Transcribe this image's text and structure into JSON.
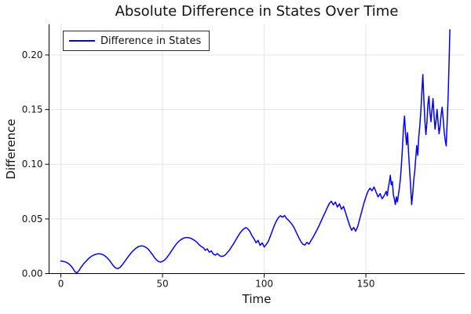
{
  "colors": {
    "series": "#0000ff",
    "grid": "#e4e4e4",
    "axis": "#000000",
    "legend_border": "#2b2b2b",
    "background": "#ffffff",
    "text": "#111111"
  },
  "legend": {
    "label": "Difference in States"
  },
  "chart_data": {
    "type": "line",
    "title": "Absolute Difference in States Over Time",
    "xlabel": "Time",
    "ylabel": "Difference",
    "xlim": [
      -5.8,
      198.6
    ],
    "ylim": [
      0,
      0.228
    ],
    "x_ticks": [
      0,
      50,
      100,
      150
    ],
    "x_tick_labels": [
      "0",
      "50",
      "100",
      "150"
    ],
    "y_ticks": [
      0,
      0.05,
      0.1,
      0.15,
      0.2
    ],
    "y_tick_labels": [
      "0.00",
      "0.05",
      "0.10",
      "0.15",
      "0.20"
    ],
    "grid": true,
    "legend_position": "top-left",
    "series": [
      {
        "name": "Difference in States",
        "color": "#0000ff",
        "points": [
          [
            0,
            0.0115
          ],
          [
            1,
            0.0112
          ],
          [
            2,
            0.0108
          ],
          [
            3,
            0.01
          ],
          [
            4,
            0.0088
          ],
          [
            5,
            0.007
          ],
          [
            6,
            0.0045
          ],
          [
            7,
            0.0015
          ],
          [
            8,
            0.0008
          ],
          [
            9,
            0.003
          ],
          [
            10,
            0.006
          ],
          [
            11,
            0.0085
          ],
          [
            12,
            0.0105
          ],
          [
            13,
            0.0125
          ],
          [
            14,
            0.0143
          ],
          [
            15,
            0.0158
          ],
          [
            16,
            0.0168
          ],
          [
            17,
            0.0175
          ],
          [
            18,
            0.018
          ],
          [
            19,
            0.0181
          ],
          [
            20,
            0.0178
          ],
          [
            21,
            0.017
          ],
          [
            22,
            0.0157
          ],
          [
            23,
            0.014
          ],
          [
            24,
            0.0118
          ],
          [
            25,
            0.0092
          ],
          [
            26,
            0.0068
          ],
          [
            27,
            0.005
          ],
          [
            28,
            0.0046
          ],
          [
            29,
            0.0055
          ],
          [
            30,
            0.0075
          ],
          [
            31,
            0.01
          ],
          [
            32,
            0.0126
          ],
          [
            33,
            0.0152
          ],
          [
            34,
            0.0176
          ],
          [
            35,
            0.0198
          ],
          [
            36,
            0.0217
          ],
          [
            37,
            0.0233
          ],
          [
            38,
            0.0245
          ],
          [
            39,
            0.0252
          ],
          [
            40,
            0.0253
          ],
          [
            41,
            0.0248
          ],
          [
            42,
            0.0238
          ],
          [
            43,
            0.0222
          ],
          [
            44,
            0.02
          ],
          [
            45,
            0.0175
          ],
          [
            46,
            0.0148
          ],
          [
            47,
            0.0125
          ],
          [
            48,
            0.011
          ],
          [
            49,
            0.0105
          ],
          [
            50,
            0.0112
          ],
          [
            51,
            0.0123
          ],
          [
            52,
            0.0143
          ],
          [
            53,
            0.0168
          ],
          [
            54,
            0.0196
          ],
          [
            55,
            0.0224
          ],
          [
            56,
            0.0251
          ],
          [
            57,
            0.0275
          ],
          [
            58,
            0.0295
          ],
          [
            59,
            0.031
          ],
          [
            60,
            0.0321
          ],
          [
            61,
            0.0328
          ],
          [
            62,
            0.033
          ],
          [
            63,
            0.0328
          ],
          [
            64,
            0.0322
          ],
          [
            65,
            0.0312
          ],
          [
            66,
            0.03
          ],
          [
            67,
            0.0285
          ],
          [
            68,
            0.0263
          ],
          [
            69,
            0.0248
          ],
          [
            70,
            0.0238
          ],
          [
            71,
            0.0213
          ],
          [
            72,
            0.0226
          ],
          [
            73,
            0.0196
          ],
          [
            74,
            0.0207
          ],
          [
            75,
            0.0178
          ],
          [
            76,
            0.0169
          ],
          [
            77,
            0.0183
          ],
          [
            78,
            0.0164
          ],
          [
            79,
            0.0157
          ],
          [
            80,
            0.0161
          ],
          [
            81,
            0.0173
          ],
          [
            82,
            0.0196
          ],
          [
            83,
            0.0216
          ],
          [
            84,
            0.0247
          ],
          [
            85,
            0.0274
          ],
          [
            86,
            0.0308
          ],
          [
            87,
            0.0338
          ],
          [
            88,
            0.0368
          ],
          [
            89,
            0.0392
          ],
          [
            90,
            0.041
          ],
          [
            91,
            0.0421
          ],
          [
            92,
            0.0408
          ],
          [
            93,
            0.0385
          ],
          [
            94,
            0.0346
          ],
          [
            95,
            0.0318
          ],
          [
            96,
            0.0282
          ],
          [
            97,
            0.0304
          ],
          [
            98,
            0.0258
          ],
          [
            99,
            0.0281
          ],
          [
            100,
            0.0243
          ],
          [
            101,
            0.0266
          ],
          [
            102,
            0.0294
          ],
          [
            103,
            0.0341
          ],
          [
            104,
            0.0392
          ],
          [
            105,
            0.0441
          ],
          [
            106,
            0.0482
          ],
          [
            107,
            0.0512
          ],
          [
            108,
            0.0529
          ],
          [
            109,
            0.0516
          ],
          [
            110,
            0.0531
          ],
          [
            111,
            0.0504
          ],
          [
            112,
            0.0487
          ],
          [
            113,
            0.0466
          ],
          [
            114,
            0.0441
          ],
          [
            115,
            0.0409
          ],
          [
            116,
            0.0368
          ],
          [
            117,
            0.0329
          ],
          [
            118,
            0.0294
          ],
          [
            119,
            0.0269
          ],
          [
            120,
            0.0261
          ],
          [
            121,
            0.0286
          ],
          [
            122,
            0.0269
          ],
          [
            123,
            0.0301
          ],
          [
            124,
            0.0332
          ],
          [
            125,
            0.0366
          ],
          [
            126,
            0.0401
          ],
          [
            127,
            0.0439
          ],
          [
            128,
            0.0481
          ],
          [
            129,
            0.0522
          ],
          [
            130,
            0.0561
          ],
          [
            131,
            0.0602
          ],
          [
            132,
            0.0641
          ],
          [
            133,
            0.0662
          ],
          [
            134,
            0.0629
          ],
          [
            135,
            0.0654
          ],
          [
            136,
            0.0608
          ],
          [
            137,
            0.0637
          ],
          [
            138,
            0.0588
          ],
          [
            139,
            0.0614
          ],
          [
            140,
            0.0558
          ],
          [
            141,
            0.0498
          ],
          [
            142,
            0.0441
          ],
          [
            143,
            0.0396
          ],
          [
            144,
            0.0422
          ],
          [
            145,
            0.0388
          ],
          [
            146,
            0.0431
          ],
          [
            147,
            0.0502
          ],
          [
            148,
            0.0571
          ],
          [
            149,
            0.0642
          ],
          [
            150,
            0.0701
          ],
          [
            151,
            0.0752
          ],
          [
            152,
            0.0781
          ],
          [
            153,
            0.0758
          ],
          [
            154,
            0.0792
          ],
          [
            155,
            0.0746
          ],
          [
            156,
            0.0701
          ],
          [
            157,
            0.0731
          ],
          [
            158,
            0.0684
          ],
          [
            159,
            0.0713
          ],
          [
            160,
            0.0752
          ],
          [
            160.5,
            0.0711
          ],
          [
            161,
            0.0781
          ],
          [
            161.5,
            0.0832
          ],
          [
            162,
            0.0899
          ],
          [
            162.5,
            0.0812
          ],
          [
            163,
            0.0841
          ],
          [
            163.5,
            0.0722
          ],
          [
            164,
            0.0681
          ],
          [
            164.5,
            0.0632
          ],
          [
            165,
            0.0701
          ],
          [
            165.5,
            0.0656
          ],
          [
            166,
            0.0721
          ],
          [
            166.5,
            0.0789
          ],
          [
            167,
            0.0872
          ],
          [
            167.5,
            0.1001
          ],
          [
            168,
            0.1158
          ],
          [
            168.5,
            0.1332
          ],
          [
            169,
            0.1441
          ],
          [
            169.5,
            0.1282
          ],
          [
            170,
            0.1179
          ],
          [
            170.5,
            0.1288
          ],
          [
            171,
            0.1098
          ],
          [
            171.5,
            0.0951
          ],
          [
            172,
            0.0798
          ],
          [
            172.5,
            0.0631
          ],
          [
            173,
            0.0722
          ],
          [
            173.5,
            0.0848
          ],
          [
            174,
            0.0931
          ],
          [
            174.5,
            0.1052
          ],
          [
            175,
            0.1171
          ],
          [
            175.5,
            0.1082
          ],
          [
            176,
            0.1249
          ],
          [
            176.5,
            0.1351
          ],
          [
            177,
            0.1478
          ],
          [
            177.5,
            0.1652
          ],
          [
            178,
            0.1821
          ],
          [
            178.5,
            0.1598
          ],
          [
            179,
            0.1402
          ],
          [
            179.5,
            0.1271
          ],
          [
            180,
            0.1378
          ],
          [
            180.5,
            0.1549
          ],
          [
            181,
            0.1622
          ],
          [
            181.5,
            0.1478
          ],
          [
            182,
            0.1389
          ],
          [
            182.5,
            0.1498
          ],
          [
            183,
            0.1601
          ],
          [
            183.5,
            0.1452
          ],
          [
            184,
            0.1321
          ],
          [
            184.5,
            0.1398
          ],
          [
            185,
            0.1501
          ],
          [
            185.5,
            0.1382
          ],
          [
            186,
            0.1279
          ],
          [
            186.5,
            0.1348
          ],
          [
            187,
            0.1451
          ],
          [
            187.5,
            0.1522
          ],
          [
            188,
            0.1419
          ],
          [
            188.5,
            0.1298
          ],
          [
            189,
            0.1221
          ],
          [
            189.5,
            0.1168
          ],
          [
            190,
            0.1402
          ],
          [
            190.5,
            0.1651
          ],
          [
            191,
            0.2001
          ],
          [
            191.3,
            0.2231
          ]
        ]
      }
    ]
  }
}
